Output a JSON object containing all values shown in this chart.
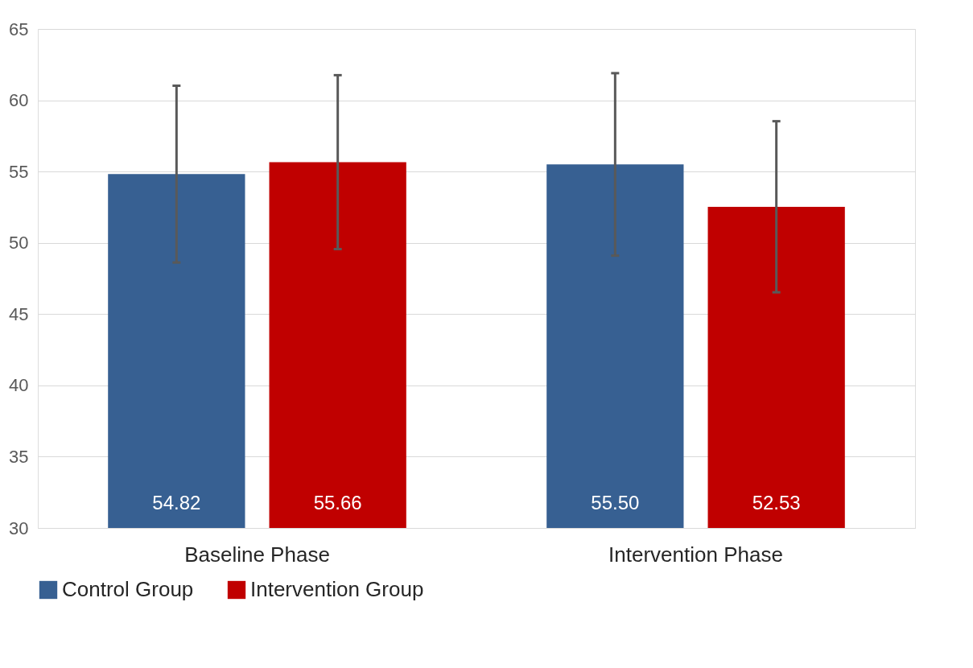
{
  "chart_data": {
    "type": "bar",
    "categories": [
      "Baseline Phase",
      "Intervention Phase"
    ],
    "series": [
      {
        "name": "Control Group",
        "color": "#376092",
        "values": [
          54.82,
          55.5
        ],
        "errors": [
          6.2,
          6.4
        ],
        "value_labels": [
          "54.82",
          "55.50"
        ]
      },
      {
        "name": "Intervention Group",
        "color": "#c00000",
        "values": [
          55.66,
          52.53
        ],
        "errors": [
          6.1,
          6.0
        ],
        "value_labels": [
          "55.66",
          "52.53"
        ]
      }
    ],
    "ylim": [
      30,
      65
    ],
    "yticks": [
      30,
      35,
      40,
      45,
      50,
      55,
      60,
      65
    ],
    "grid": "y",
    "legend": "bottom"
  }
}
